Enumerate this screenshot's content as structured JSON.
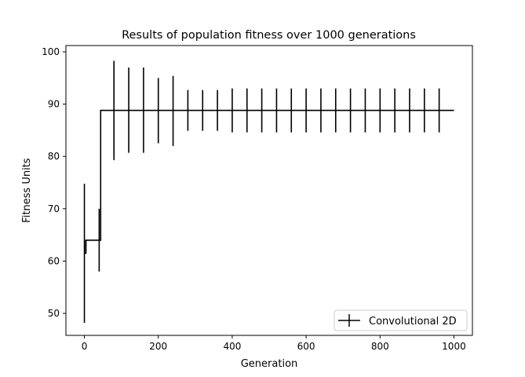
{
  "chart_data": {
    "type": "line",
    "title": "Results of population fitness over 1000 generations",
    "xlabel": "Generation",
    "ylabel": "Fitness Units",
    "xlim": [
      -50,
      1050
    ],
    "ylim": [
      45.8,
      101.2
    ],
    "x_ticks": [
      0,
      200,
      400,
      600,
      800,
      1000
    ],
    "y_ticks": [
      50,
      60,
      70,
      80,
      90,
      100
    ],
    "grid": false,
    "legend_position": "bottom-right",
    "series": [
      {
        "name": "Convolutional 2D",
        "color": "#000000",
        "step": "post",
        "x": [
          0,
          4,
          40,
          44,
          80,
          120,
          160,
          200,
          240,
          280,
          320,
          360,
          400,
          440,
          480,
          520,
          560,
          600,
          640,
          680,
          720,
          760,
          800,
          840,
          880,
          920,
          960,
          1000
        ],
        "y": [
          61.5,
          64,
          64,
          88.8,
          88.8,
          88.8,
          88.8,
          88.8,
          88.8,
          88.8,
          88.8,
          88.8,
          88.8,
          88.8,
          88.8,
          88.8,
          88.8,
          88.8,
          88.8,
          88.8,
          88.8,
          88.8,
          88.8,
          88.8,
          88.8,
          88.8,
          88.8,
          88.8
        ],
        "errorbars": [
          {
            "x": 0,
            "low": 48.2,
            "high": 74.8
          },
          {
            "x": 4,
            "low": 61.5,
            "high": 64.0
          },
          {
            "x": 40,
            "low": 58.0,
            "high": 70.0
          },
          {
            "x": 80,
            "low": 79.3,
            "high": 98.3
          },
          {
            "x": 120,
            "low": 80.7,
            "high": 97.0
          },
          {
            "x": 160,
            "low": 80.7,
            "high": 97.0
          },
          {
            "x": 200,
            "low": 82.5,
            "high": 95.0
          },
          {
            "x": 240,
            "low": 82.0,
            "high": 95.4
          },
          {
            "x": 280,
            "low": 84.9,
            "high": 92.7
          },
          {
            "x": 320,
            "low": 84.9,
            "high": 92.7
          },
          {
            "x": 360,
            "low": 84.9,
            "high": 92.7
          },
          {
            "x": 400,
            "low": 84.6,
            "high": 93.0
          },
          {
            "x": 440,
            "low": 84.6,
            "high": 93.0
          },
          {
            "x": 480,
            "low": 84.6,
            "high": 93.0
          },
          {
            "x": 520,
            "low": 84.6,
            "high": 93.0
          },
          {
            "x": 560,
            "low": 84.6,
            "high": 93.0
          },
          {
            "x": 600,
            "low": 84.6,
            "high": 93.0
          },
          {
            "x": 640,
            "low": 84.6,
            "high": 93.0
          },
          {
            "x": 680,
            "low": 84.6,
            "high": 93.0
          },
          {
            "x": 720,
            "low": 84.6,
            "high": 93.0
          },
          {
            "x": 760,
            "low": 84.6,
            "high": 93.0
          },
          {
            "x": 800,
            "low": 84.6,
            "high": 93.0
          },
          {
            "x": 840,
            "low": 84.6,
            "high": 93.0
          },
          {
            "x": 880,
            "low": 84.6,
            "high": 93.0
          },
          {
            "x": 920,
            "low": 84.6,
            "high": 93.0
          },
          {
            "x": 960,
            "low": 84.6,
            "high": 93.0
          }
        ]
      }
    ]
  }
}
